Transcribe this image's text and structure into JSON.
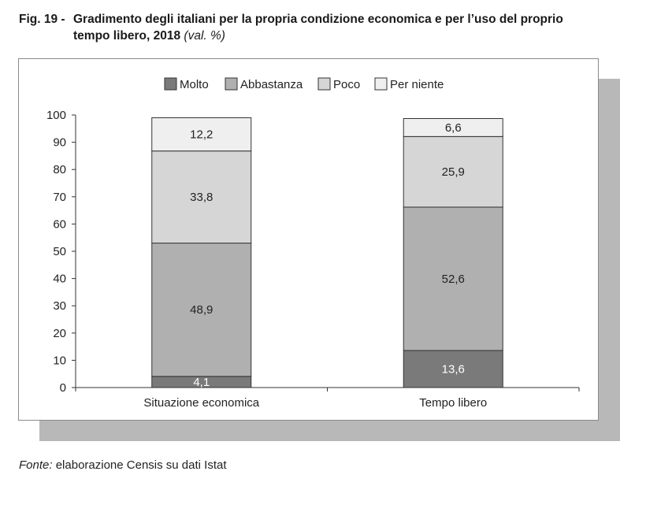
{
  "figure": {
    "number": "Fig. 19 -",
    "title_line1": "Gradimento degli italiani per la propria condizione economica e per l’uso del proprio",
    "title_line2": "tempo libero, 2018",
    "unit": "(val. %)"
  },
  "source": {
    "lead": "Fonte:",
    "text": "elaborazione Censis su dati Istat"
  },
  "chart_data": {
    "type": "bar",
    "stacked": true,
    "categories": [
      "Situazione economica",
      "Tempo libero"
    ],
    "series": [
      {
        "name": "Molto",
        "values": [
          4.1,
          13.6
        ],
        "labels": [
          "4,1",
          "13,6"
        ],
        "color": "#7a7a7a",
        "label_color": "#ffffff"
      },
      {
        "name": "Abbastanza",
        "values": [
          48.9,
          52.6
        ],
        "labels": [
          "48,9",
          "52,6"
        ],
        "color": "#b0b0b0",
        "label_color": "#222222"
      },
      {
        "name": "Poco",
        "values": [
          33.8,
          25.9
        ],
        "labels": [
          "33,8",
          "25,9"
        ],
        "color": "#d6d6d6",
        "label_color": "#222222"
      },
      {
        "name": "Per niente",
        "values": [
          12.2,
          6.6
        ],
        "labels": [
          "12,2",
          "6,6"
        ],
        "color": "#efefef",
        "label_color": "#222222"
      }
    ],
    "ylim": [
      0,
      100
    ],
    "yticks": [
      0,
      10,
      20,
      30,
      40,
      50,
      60,
      70,
      80,
      90,
      100
    ],
    "legend_position": "top-center",
    "grid": false
  }
}
